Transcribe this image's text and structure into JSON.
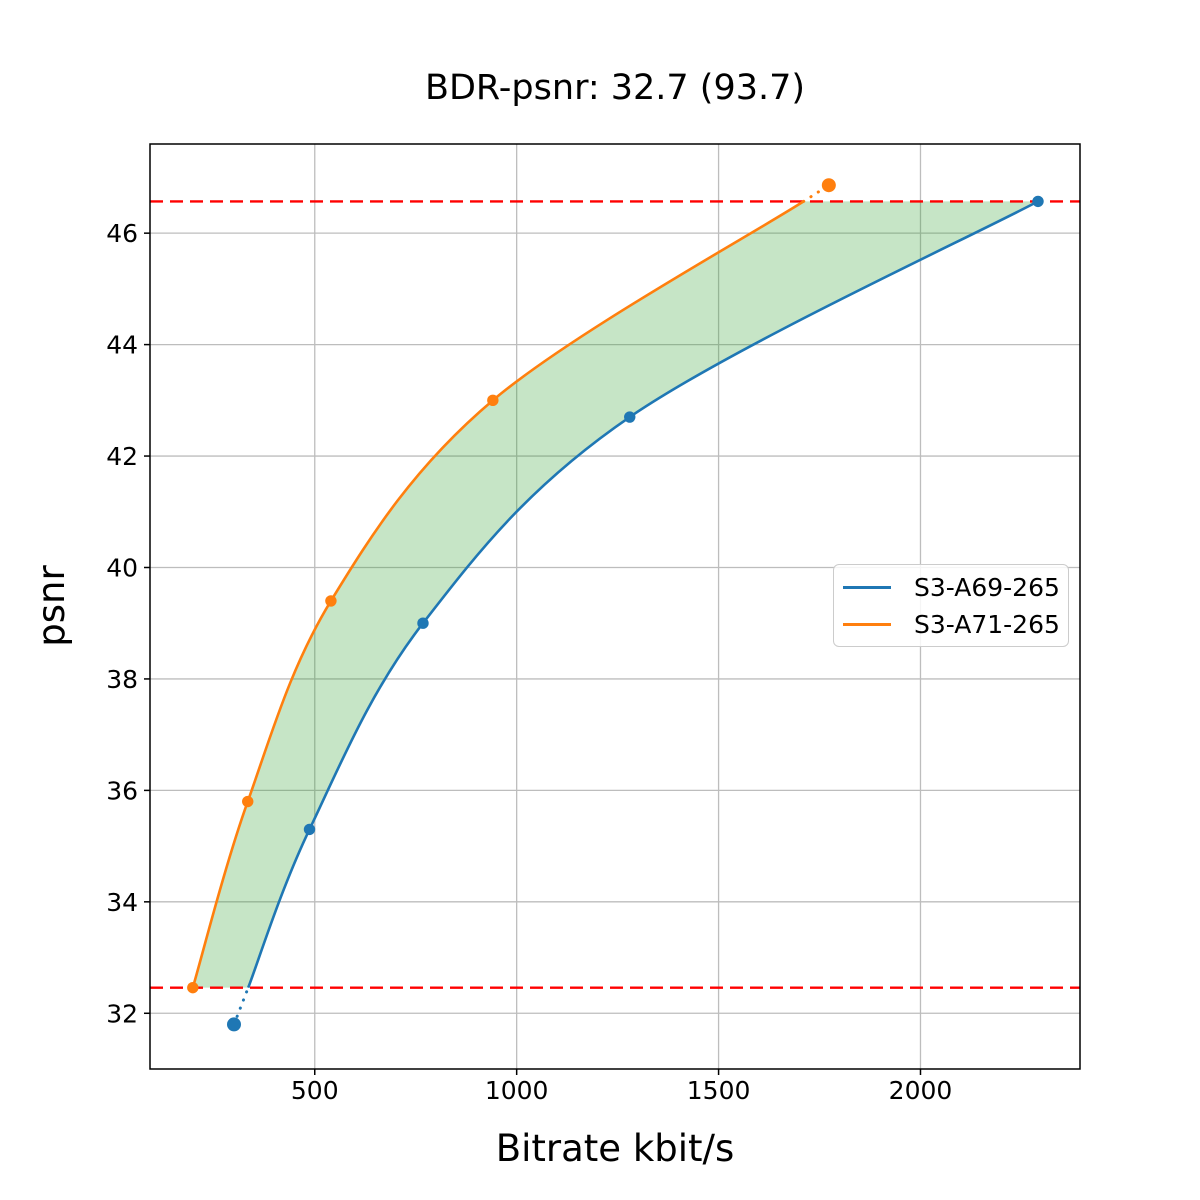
{
  "page": {
    "background": "#ffffff"
  },
  "chart_data": {
    "type": "line",
    "title": "BDR-psnr: 32.7 (93.7)",
    "xlabel": "Bitrate kbit/s",
    "ylabel": "psnr",
    "xlim": [
      92,
      2395
    ],
    "ylim": [
      31.0,
      47.6
    ],
    "xticks": [
      500,
      1000,
      1500,
      2000
    ],
    "yticks": [
      32,
      34,
      36,
      38,
      40,
      42,
      44,
      46
    ],
    "grid": true,
    "legend_position": "center-right",
    "series": [
      {
        "name": "S3-A69-265",
        "color": "#1f77b4",
        "marker": "circle",
        "points": [
          [
            300,
            31.8
          ],
          [
            487,
            35.3
          ],
          [
            768,
            39.0
          ],
          [
            1280,
            42.7
          ],
          [
            2291,
            46.57
          ]
        ]
      },
      {
        "name": "S3-A71-265",
        "color": "#ff7f0e",
        "marker": "circle",
        "points": [
          [
            198,
            32.46
          ],
          [
            334,
            35.8
          ],
          [
            540,
            39.4
          ],
          [
            941,
            43.0
          ],
          [
            1773,
            46.86
          ]
        ]
      }
    ],
    "hlines": [
      {
        "y": 32.46,
        "color": "#ff0000",
        "style": "dashed"
      },
      {
        "y": 46.57,
        "color": "#ff0000",
        "style": "dashed"
      }
    ],
    "fill_between": {
      "color": "#2ca02c",
      "alpha": 0.27
    },
    "style": {
      "grid_color": "#bdbdbd",
      "frame_color": "#000000",
      "text_color": "#000000",
      "outside_interval_linestyle": "dotted"
    }
  }
}
